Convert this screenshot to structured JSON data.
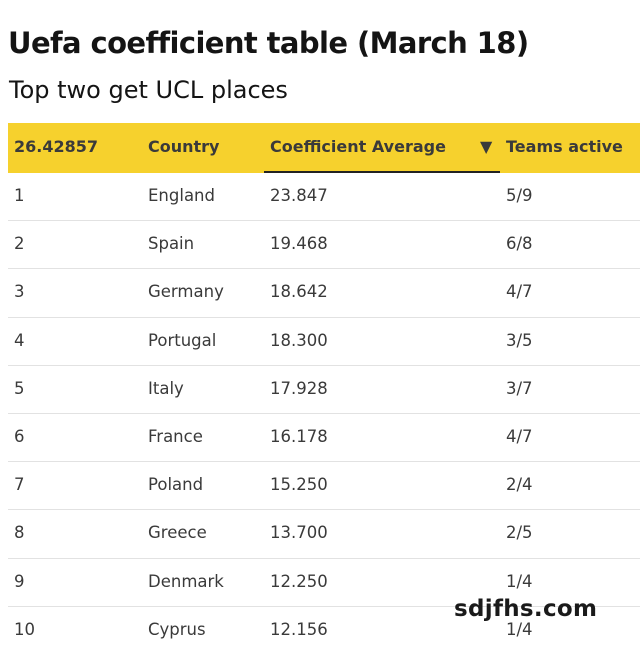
{
  "title": "Uefa coefficient table (March 18)",
  "subtitle": "Top two get UCL places",
  "watermark": "sdjfhs.com",
  "chart_data": {
    "type": "table",
    "columns": [
      "26.42857",
      "Country",
      "Coefficient Average",
      "Teams active"
    ],
    "sort_indicator": "▼",
    "sorted_column": "Coefficient Average",
    "rows": [
      {
        "rank": "1",
        "country": "England",
        "coefficient": "23.847",
        "teams": "5/9"
      },
      {
        "rank": "2",
        "country": "Spain",
        "coefficient": "19.468",
        "teams": "6/8"
      },
      {
        "rank": "3",
        "country": "Germany",
        "coefficient": "18.642",
        "teams": "4/7"
      },
      {
        "rank": "4",
        "country": "Portugal",
        "coefficient": "18.300",
        "teams": "3/5"
      },
      {
        "rank": "5",
        "country": "Italy",
        "coefficient": "17.928",
        "teams": "3/7"
      },
      {
        "rank": "6",
        "country": "France",
        "coefficient": "16.178",
        "teams": "4/7"
      },
      {
        "rank": "7",
        "country": "Poland",
        "coefficient": "15.250",
        "teams": "2/4"
      },
      {
        "rank": "8",
        "country": "Greece",
        "coefficient": "13.700",
        "teams": "2/5"
      },
      {
        "rank": "9",
        "country": "Denmark",
        "coefficient": "12.250",
        "teams": "1/4"
      },
      {
        "rank": "10",
        "country": "Cyprus",
        "coefficient": "12.156",
        "teams": "1/4"
      }
    ],
    "colors": {
      "header_background": "#f6d12d",
      "row_divider": "#e2e2e2"
    }
  }
}
